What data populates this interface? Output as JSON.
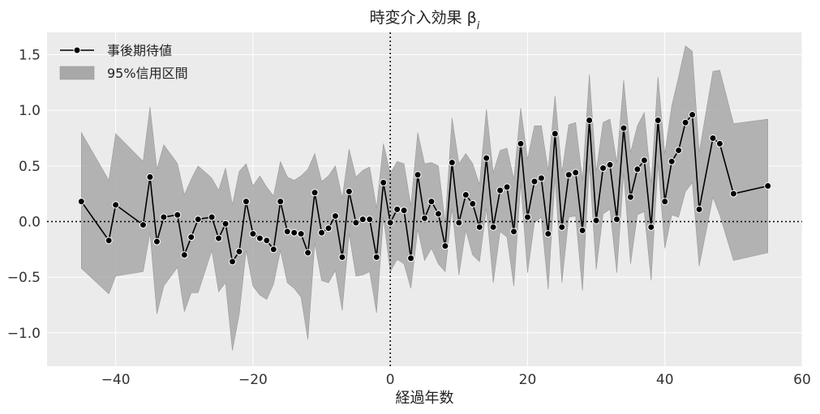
{
  "chart_data": {
    "type": "line",
    "title": "時変介入効果 β",
    "title_subscript": "i",
    "xlabel": "経過年数",
    "ylabel": "",
    "xlim": [
      -50,
      60
    ],
    "ylim": [
      -1.3,
      1.7
    ],
    "xticks": [
      -40,
      -20,
      0,
      20,
      40,
      60
    ],
    "xtick_labels": [
      "−40",
      "−20",
      "0",
      "20",
      "40",
      "60"
    ],
    "yticks": [
      -1.0,
      -0.5,
      0.0,
      0.5,
      1.0,
      1.5
    ],
    "ytick_labels": [
      "−1.0",
      "−0.5",
      "0.0",
      "0.5",
      "1.0",
      "1.5"
    ],
    "grid": true,
    "legend_position": "top-left",
    "reference_lines": {
      "horizontal": 0,
      "vertical": 0
    },
    "series": [
      {
        "name": "事後期待値",
        "color": "#000000",
        "marker": "circle",
        "x": [
          -45,
          -41,
          -40,
          -36,
          -35,
          -34,
          -33,
          -31,
          -30,
          -29,
          -28,
          -26,
          -25,
          -24,
          -23,
          -22,
          -21,
          -20,
          -19,
          -18,
          -17,
          -16,
          -15,
          -14,
          -13,
          -12,
          -11,
          -10,
          -9,
          -8,
          -7,
          -6,
          -5,
          -4,
          -3,
          -2,
          -1,
          0,
          1,
          2,
          3,
          4,
          5,
          6,
          7,
          8,
          9,
          10,
          11,
          12,
          13,
          14,
          15,
          16,
          17,
          18,
          19,
          20,
          21,
          22,
          23,
          24,
          25,
          26,
          27,
          28,
          29,
          30,
          31,
          32,
          33,
          34,
          35,
          36,
          37,
          38,
          39,
          40,
          41,
          42,
          43,
          44,
          45,
          47,
          48,
          50,
          55
        ],
        "values": [
          0.18,
          -0.17,
          0.15,
          -0.03,
          0.4,
          -0.18,
          0.04,
          0.06,
          -0.3,
          -0.14,
          0.02,
          0.04,
          -0.15,
          -0.02,
          -0.36,
          -0.27,
          0.18,
          -0.11,
          -0.15,
          -0.17,
          -0.25,
          0.18,
          -0.09,
          -0.1,
          -0.11,
          -0.28,
          0.26,
          -0.1,
          -0.06,
          0.05,
          -0.32,
          0.27,
          -0.01,
          0.02,
          0.02,
          -0.32,
          0.35,
          -0.01,
          0.11,
          0.1,
          -0.33,
          0.42,
          0.03,
          0.18,
          0.07,
          -0.22,
          0.53,
          -0.01,
          0.24,
          0.16,
          -0.05,
          0.57,
          -0.05,
          0.28,
          0.31,
          -0.09,
          0.7,
          0.04,
          0.36,
          0.39,
          -0.11,
          0.79,
          -0.05,
          0.42,
          0.44,
          -0.08,
          0.91,
          0.01,
          0.48,
          0.51,
          0.02,
          0.84,
          0.22,
          0.47,
          0.55,
          -0.05,
          0.91,
          0.18,
          0.54,
          0.64,
          0.89,
          0.96,
          0.11,
          0.75,
          0.7,
          0.25,
          0.32
        ]
      },
      {
        "name": "95%信用区間",
        "color": "#a8a8a8",
        "type": "area",
        "x": [
          -45,
          -41,
          -40,
          -36,
          -35,
          -34,
          -33,
          -31,
          -30,
          -29,
          -28,
          -26,
          -25,
          -24,
          -23,
          -22,
          -21,
          -20,
          -19,
          -18,
          -17,
          -16,
          -15,
          -14,
          -13,
          -12,
          -11,
          -10,
          -9,
          -8,
          -7,
          -6,
          -5,
          -4,
          -3,
          -2,
          -1,
          0,
          1,
          2,
          3,
          4,
          5,
          6,
          7,
          8,
          9,
          10,
          11,
          12,
          13,
          14,
          15,
          16,
          17,
          18,
          19,
          20,
          21,
          22,
          23,
          24,
          25,
          26,
          27,
          28,
          29,
          30,
          31,
          32,
          33,
          34,
          35,
          36,
          37,
          38,
          39,
          40,
          41,
          42,
          43,
          44,
          45,
          47,
          48,
          50,
          55
        ],
        "lower": [
          -0.42,
          -0.65,
          -0.49,
          -0.45,
          -0.1,
          -0.83,
          -0.58,
          -0.41,
          -0.81,
          -0.64,
          -0.64,
          -0.26,
          -0.63,
          -0.55,
          -1.16,
          -0.83,
          -0.26,
          -0.58,
          -0.66,
          -0.7,
          -0.56,
          -0.26,
          -0.55,
          -0.6,
          -0.68,
          -1.06,
          -0.19,
          -0.53,
          -0.55,
          -0.44,
          -0.8,
          -0.11,
          -0.49,
          -0.48,
          -0.45,
          -0.82,
          0.04,
          -0.45,
          -0.34,
          -0.38,
          -0.6,
          -0.07,
          -0.35,
          -0.24,
          -0.38,
          -0.45,
          0.12,
          -0.48,
          -0.08,
          -0.3,
          -0.36,
          0.12,
          -0.55,
          -0.09,
          -0.14,
          -0.58,
          0.35,
          -0.46,
          -0.01,
          0.04,
          -0.61,
          0.39,
          -0.55,
          0.04,
          0.05,
          -0.62,
          0.51,
          -0.43,
          0.07,
          0.11,
          -0.46,
          0.44,
          -0.38,
          0.06,
          0.09,
          -0.53,
          0.52,
          -0.24,
          0.06,
          0.04,
          0.27,
          0.35,
          -0.4,
          0.22,
          0.06,
          -0.35,
          -0.28
        ],
        "upper": [
          0.8,
          0.37,
          0.79,
          0.54,
          1.03,
          0.47,
          0.69,
          0.52,
          0.24,
          0.38,
          0.5,
          0.39,
          0.28,
          0.48,
          0.15,
          0.45,
          0.52,
          0.32,
          0.41,
          0.31,
          0.23,
          0.54,
          0.4,
          0.37,
          0.41,
          0.47,
          0.61,
          0.36,
          0.41,
          0.5,
          0.21,
          0.65,
          0.4,
          0.46,
          0.49,
          0.12,
          0.7,
          0.43,
          0.54,
          0.52,
          0.14,
          0.8,
          0.52,
          0.53,
          0.5,
          -0.01,
          0.93,
          0.52,
          0.61,
          0.52,
          0.33,
          1.01,
          0.44,
          0.64,
          0.66,
          0.38,
          1.02,
          0.56,
          0.86,
          0.86,
          0.46,
          1.13,
          0.44,
          0.87,
          0.89,
          0.37,
          1.32,
          0.45,
          0.89,
          0.92,
          0.53,
          1.27,
          0.62,
          0.86,
          0.98,
          0.34,
          1.3,
          0.61,
          1.04,
          1.3,
          1.58,
          1.53,
          0.62,
          1.35,
          1.36,
          0.88,
          0.92
        ]
      }
    ]
  }
}
